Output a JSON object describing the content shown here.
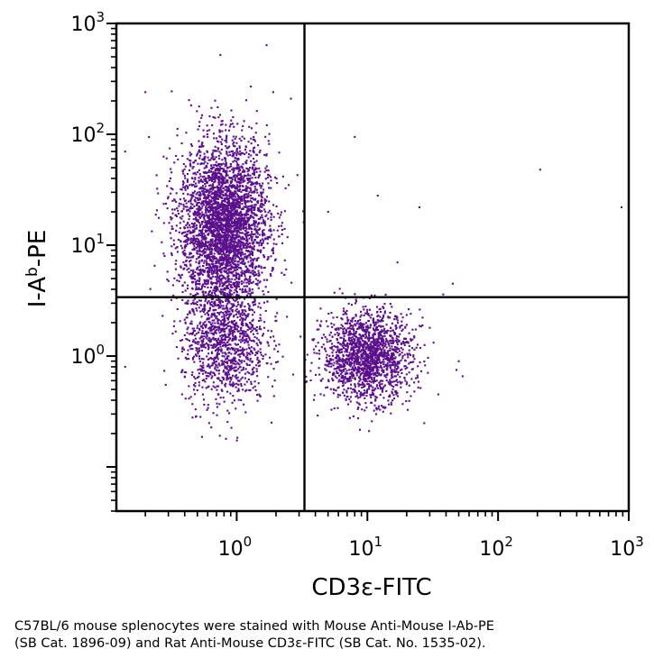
{
  "chart_data": {
    "type": "scatter",
    "x_scale": "log",
    "y_scale": "log",
    "xlim": [
      0.12,
      1000
    ],
    "ylim": [
      0.04,
      1000
    ],
    "x_ticks": [
      {
        "value": 1,
        "base": "10",
        "exp": "0"
      },
      {
        "value": 10,
        "base": "10",
        "exp": "1"
      },
      {
        "value": 100,
        "base": "10",
        "exp": "2"
      },
      {
        "value": 1000,
        "base": "10",
        "exp": "3"
      }
    ],
    "y_ticks": [
      {
        "value": 1,
        "base": "10",
        "exp": "0"
      },
      {
        "value": 10,
        "base": "10",
        "exp": "1"
      },
      {
        "value": 100,
        "base": "10",
        "exp": "2"
      },
      {
        "value": 1000,
        "base": "10",
        "exp": "3"
      }
    ],
    "xlabel": "CD3ε-FITC",
    "ylabel": {
      "main": "I-A",
      "superscript": "b",
      "suffix": "-PE"
    },
    "quadrant_gates": {
      "x": 3.3,
      "y": 3.4
    },
    "point_color": "#5b0f8a",
    "populations": [
      {
        "x_center": 0.8,
        "y_center": 15,
        "x_spread_decades": 0.17,
        "y_spread_decades": 0.38,
        "count": 3600
      },
      {
        "x_center": 0.8,
        "y_center": 1.3,
        "x_spread_decades": 0.16,
        "y_spread_decades": 0.28,
        "count": 1100
      },
      {
        "x_center": 10,
        "y_center": 1.0,
        "x_spread_decades": 0.17,
        "y_spread_decades": 0.2,
        "count": 1700
      }
    ],
    "outliers": [
      {
        "x": 210,
        "y": 48
      },
      {
        "x": 880,
        "y": 22
      },
      {
        "x": 0.2,
        "y": 240
      },
      {
        "x": 0.75,
        "y": 520
      },
      {
        "x": 3.3,
        "y": 110
      },
      {
        "x": 8,
        "y": 95
      },
      {
        "x": 12,
        "y": 28
      },
      {
        "x": 25,
        "y": 22
      },
      {
        "x": 17,
        "y": 7
      },
      {
        "x": 45,
        "y": 4.5
      },
      {
        "x": 38,
        "y": 3.6
      },
      {
        "x": 48,
        "y": 0.75
      },
      {
        "x": 50,
        "y": 0.9
      },
      {
        "x": 0.14,
        "y": 70
      },
      {
        "x": 0.14,
        "y": 0.8
      },
      {
        "x": 1.9,
        "y": 240
      },
      {
        "x": 2.6,
        "y": 210
      },
      {
        "x": 5,
        "y": 20
      },
      {
        "x": 30,
        "y": 1.8
      }
    ]
  },
  "caption": {
    "line1": "C57BL/6 mouse splenocytes were stained with Mouse Anti-Mouse I-Ab-PE",
    "line2": "(SB Cat. 1896-09) and Rat Anti-Mouse CD3ε-FITC (SB Cat. No. 1535-02)."
  }
}
